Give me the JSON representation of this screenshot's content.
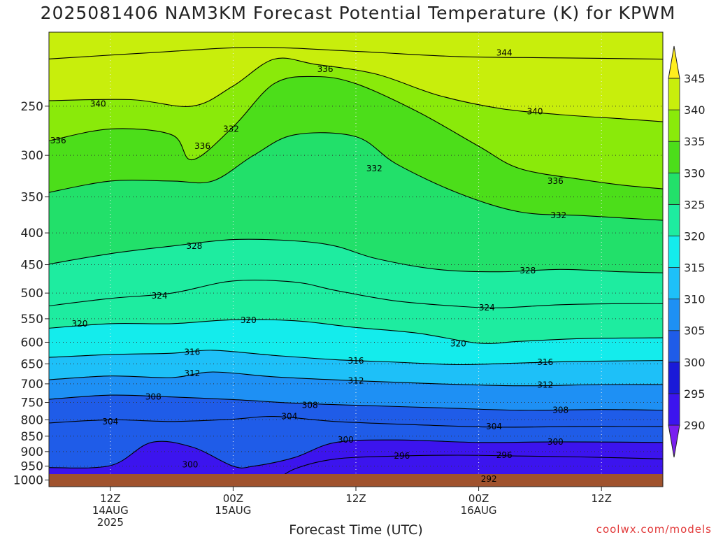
{
  "chart_data": {
    "type": "heatmap",
    "title": "2025081406 NAM3KM Forecast Potential Temperature (K) for KPWM",
    "xlabel": "Forecast Time (UTC)",
    "ylabel": "",
    "credit": "coolwx.com/models",
    "y_axis": {
      "scale": "log",
      "unit": "hPa",
      "range": [
        1025,
        190
      ],
      "ticks": [
        250,
        300,
        350,
        400,
        450,
        500,
        550,
        600,
        650,
        700,
        750,
        800,
        850,
        900,
        950,
        1000
      ]
    },
    "x_axis": {
      "unit": "forecast hour from 2025-08-14 06Z",
      "range": [
        0,
        60
      ],
      "ticks": [
        {
          "hour": 6,
          "lines": [
            "12Z",
            "14AUG",
            "2025"
          ]
        },
        {
          "hour": 18,
          "lines": [
            "00Z",
            "15AUG"
          ]
        },
        {
          "hour": 30,
          "lines": [
            "12Z"
          ]
        },
        {
          "hour": 42,
          "lines": [
            "00Z",
            "16AUG"
          ]
        },
        {
          "hour": 54,
          "lines": [
            "12Z"
          ]
        }
      ]
    },
    "colorbar": {
      "levels": [
        290,
        295,
        300,
        305,
        310,
        315,
        320,
        325,
        330,
        335,
        340,
        345
      ],
      "colors": [
        "#7a1ef0",
        "#3c14ee",
        "#1a1ad8",
        "#1f5ce8",
        "#1e90f4",
        "#1ec0f8",
        "#14ecec",
        "#1eeca0",
        "#22e06a",
        "#4cde1a",
        "#8aea0a",
        "#c8ee0c",
        "#ffee1e"
      ],
      "labels": [
        "290",
        "295",
        "300",
        "305",
        "310",
        "315",
        "320",
        "325",
        "330",
        "335",
        "340",
        "345"
      ]
    },
    "series": [
      {
        "value": 344,
        "points": [
          [
            0,
            210
          ],
          [
            10,
            205
          ],
          [
            20,
            201
          ],
          [
            30,
            204
          ],
          [
            40,
            208
          ],
          [
            50,
            209
          ],
          [
            60,
            210
          ]
        ]
      },
      {
        "value": 340,
        "points": [
          [
            0,
            245
          ],
          [
            8,
            244
          ],
          [
            14,
            250
          ],
          [
            18,
            232
          ],
          [
            22,
            210
          ],
          [
            26,
            214
          ],
          [
            32,
            222
          ],
          [
            38,
            240
          ],
          [
            44,
            252
          ],
          [
            50,
            258
          ],
          [
            56,
            262
          ],
          [
            60,
            265
          ]
        ]
      },
      {
        "value": 336,
        "points": [
          [
            0,
            285
          ],
          [
            6,
            272
          ],
          [
            12,
            278
          ],
          [
            14,
            305
          ],
          [
            18,
            270
          ],
          [
            22,
            230
          ],
          [
            26,
            224
          ],
          [
            30,
            230
          ],
          [
            36,
            255
          ],
          [
            42,
            290
          ],
          [
            46,
            315
          ],
          [
            52,
            328
          ],
          [
            56,
            335
          ],
          [
            60,
            340
          ]
        ]
      },
      {
        "value": 332,
        "points": [
          [
            0,
            345
          ],
          [
            6,
            330
          ],
          [
            12,
            330
          ],
          [
            16,
            330
          ],
          [
            20,
            300
          ],
          [
            24,
            278
          ],
          [
            30,
            280
          ],
          [
            34,
            310
          ],
          [
            40,
            345
          ],
          [
            46,
            370
          ],
          [
            52,
            375
          ],
          [
            60,
            382
          ]
        ]
      },
      {
        "value": 328,
        "points": [
          [
            0,
            450
          ],
          [
            6,
            432
          ],
          [
            12,
            420
          ],
          [
            18,
            410
          ],
          [
            24,
            412
          ],
          [
            28,
            420
          ],
          [
            32,
            440
          ],
          [
            38,
            458
          ],
          [
            44,
            462
          ],
          [
            50,
            458
          ],
          [
            56,
            462
          ],
          [
            60,
            464
          ]
        ]
      },
      {
        "value": 324,
        "points": [
          [
            0,
            525
          ],
          [
            6,
            510
          ],
          [
            12,
            500
          ],
          [
            18,
            478
          ],
          [
            24,
            480
          ],
          [
            28,
            495
          ],
          [
            34,
            515
          ],
          [
            40,
            525
          ],
          [
            44,
            528
          ],
          [
            50,
            522
          ],
          [
            56,
            520
          ],
          [
            60,
            520
          ]
        ]
      },
      {
        "value": 320,
        "points": [
          [
            0,
            570
          ],
          [
            6,
            560
          ],
          [
            12,
            560
          ],
          [
            18,
            552
          ],
          [
            24,
            554
          ],
          [
            30,
            568
          ],
          [
            36,
            580
          ],
          [
            42,
            602
          ],
          [
            46,
            598
          ],
          [
            52,
            592
          ],
          [
            60,
            590
          ]
        ]
      },
      {
        "value": 316,
        "points": [
          [
            0,
            635
          ],
          [
            6,
            628
          ],
          [
            12,
            625
          ],
          [
            16,
            618
          ],
          [
            22,
            630
          ],
          [
            28,
            640
          ],
          [
            34,
            646
          ],
          [
            40,
            652
          ],
          [
            46,
            648
          ],
          [
            52,
            644
          ],
          [
            60,
            642
          ]
        ]
      },
      {
        "value": 312,
        "points": [
          [
            0,
            690
          ],
          [
            6,
            680
          ],
          [
            12,
            684
          ],
          [
            16,
            670
          ],
          [
            22,
            682
          ],
          [
            30,
            692
          ],
          [
            38,
            700
          ],
          [
            46,
            705
          ],
          [
            54,
            702
          ],
          [
            60,
            702
          ]
        ]
      },
      {
        "value": 308,
        "points": [
          [
            0,
            742
          ],
          [
            6,
            730
          ],
          [
            12,
            735
          ],
          [
            18,
            742
          ],
          [
            24,
            752
          ],
          [
            30,
            758
          ],
          [
            38,
            765
          ],
          [
            46,
            772
          ],
          [
            54,
            770
          ],
          [
            60,
            772
          ]
        ]
      },
      {
        "value": 304,
        "points": [
          [
            0,
            810
          ],
          [
            6,
            800
          ],
          [
            12,
            805
          ],
          [
            18,
            798
          ],
          [
            22,
            790
          ],
          [
            28,
            805
          ],
          [
            36,
            815
          ],
          [
            44,
            822
          ],
          [
            52,
            820
          ],
          [
            60,
            820
          ]
        ]
      },
      {
        "value": 300,
        "points": [
          [
            0,
            955
          ],
          [
            6,
            948
          ],
          [
            10,
            870
          ],
          [
            14,
            885
          ],
          [
            18,
            950
          ],
          [
            20,
            950
          ],
          [
            24,
            920
          ],
          [
            28,
            870
          ],
          [
            34,
            862
          ],
          [
            42,
            870
          ],
          [
            50,
            868
          ],
          [
            60,
            870
          ]
        ]
      },
      {
        "value": 296,
        "points": [
          [
            22,
            1010
          ],
          [
            24,
            960
          ],
          [
            28,
            925
          ],
          [
            34,
            915
          ],
          [
            40,
            912
          ],
          [
            46,
            915
          ],
          [
            52,
            918
          ],
          [
            60,
            925
          ]
        ]
      },
      {
        "value": 292,
        "points": [
          [
            40,
            1000
          ],
          [
            44,
            995
          ],
          [
            50,
            996
          ],
          [
            56,
            1000
          ]
        ]
      }
    ],
    "annotations": [
      {
        "text": "344",
        "hour": 44.5,
        "p": 205
      },
      {
        "text": "340",
        "hour": 4.8,
        "p": 248
      },
      {
        "text": "340",
        "hour": 47.5,
        "p": 255
      },
      {
        "text": "336",
        "hour": 0.9,
        "p": 284
      },
      {
        "text": "336",
        "hour": 15.0,
        "p": 290
      },
      {
        "text": "336",
        "hour": 27.0,
        "p": 218
      },
      {
        "text": "336",
        "hour": 49.5,
        "p": 330
      },
      {
        "text": "332",
        "hour": 17.8,
        "p": 272
      },
      {
        "text": "332",
        "hour": 31.8,
        "p": 315
      },
      {
        "text": "332",
        "hour": 49.8,
        "p": 375
      },
      {
        "text": "328",
        "hour": 14.2,
        "p": 420
      },
      {
        "text": "328",
        "hour": 46.8,
        "p": 460
      },
      {
        "text": "324",
        "hour": 10.8,
        "p": 505
      },
      {
        "text": "324",
        "hour": 42.8,
        "p": 528
      },
      {
        "text": "320",
        "hour": 3.0,
        "p": 560
      },
      {
        "text": "320",
        "hour": 19.5,
        "p": 553
      },
      {
        "text": "320",
        "hour": 40.0,
        "p": 603
      },
      {
        "text": "316",
        "hour": 14.0,
        "p": 622
      },
      {
        "text": "316",
        "hour": 30.0,
        "p": 643
      },
      {
        "text": "316",
        "hour": 48.5,
        "p": 646
      },
      {
        "text": "312",
        "hour": 14.0,
        "p": 673
      },
      {
        "text": "312",
        "hour": 30.0,
        "p": 692
      },
      {
        "text": "312",
        "hour": 48.5,
        "p": 703
      },
      {
        "text": "308",
        "hour": 10.2,
        "p": 735
      },
      {
        "text": "308",
        "hour": 25.5,
        "p": 758
      },
      {
        "text": "308",
        "hour": 50.0,
        "p": 772
      },
      {
        "text": "304",
        "hour": 6.0,
        "p": 805
      },
      {
        "text": "304",
        "hour": 23.5,
        "p": 790
      },
      {
        "text": "304",
        "hour": 43.5,
        "p": 820
      },
      {
        "text": "300",
        "hour": 13.8,
        "p": 945
      },
      {
        "text": "300",
        "hour": 29.0,
        "p": 862
      },
      {
        "text": "300",
        "hour": 49.5,
        "p": 868
      },
      {
        "text": "296",
        "hour": 34.5,
        "p": 915
      },
      {
        "text": "296",
        "hour": 44.5,
        "p": 912
      },
      {
        "text": "292",
        "hour": 43.0,
        "p": 996
      }
    ]
  }
}
